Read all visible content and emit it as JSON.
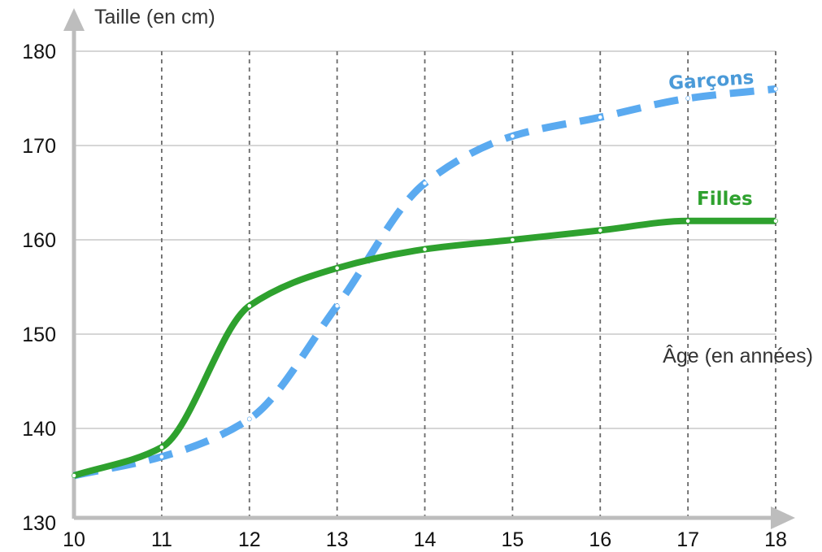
{
  "chart_data": {
    "type": "line",
    "title": "",
    "xlabel": "Âge (en années)",
    "ylabel": "Taille (en cm)",
    "xlim": [
      10,
      18
    ],
    "ylim": [
      130,
      180
    ],
    "x_ticks": [
      "10",
      "11",
      "12",
      "13",
      "14",
      "15",
      "16",
      "17",
      "18"
    ],
    "y_ticks": [
      "130",
      "140",
      "150",
      "160",
      "170",
      "180"
    ],
    "grid": true,
    "series": [
      {
        "name": "Garçons",
        "color": "#5aaaf0",
        "style": "dashed",
        "x": [
          10,
          11,
          12,
          13,
          14,
          15,
          16,
          17,
          18
        ],
        "y": [
          135,
          137,
          141,
          153,
          166,
          171,
          173,
          175,
          176
        ]
      },
      {
        "name": "Filles",
        "color": "#2ea12e",
        "style": "solid",
        "x": [
          10,
          11,
          12,
          13,
          14,
          15,
          16,
          17,
          18
        ],
        "y": [
          135,
          138,
          153,
          157,
          159,
          160,
          161,
          162,
          162
        ]
      }
    ]
  }
}
